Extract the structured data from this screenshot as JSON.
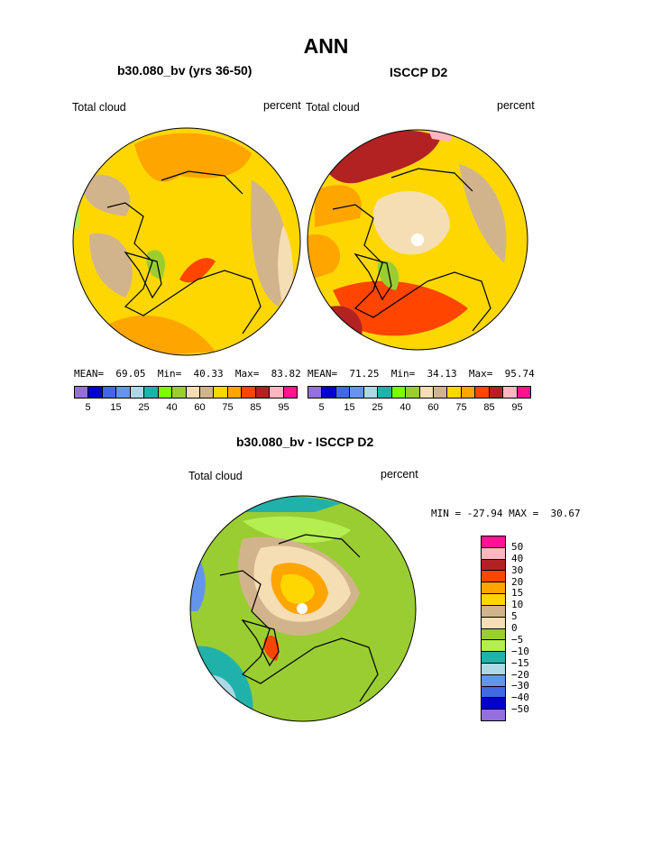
{
  "title": "ANN",
  "panels": [
    {
      "subtitle": "b30.080_bv (yrs 36-50)",
      "left_label": "Total cloud",
      "right_label": "percent",
      "stats": {
        "mean_label": "MEAN=",
        "mean": "69.05",
        "min_label": "Min=",
        "min": "40.33",
        "max_label": "Max=",
        "max": "83.82"
      }
    },
    {
      "subtitle": "ISCCP D2",
      "left_label": "Total cloud",
      "right_label": "percent",
      "stats": {
        "mean_label": "MEAN=",
        "mean": "71.25",
        "min_label": "Min=",
        "min": "34.13",
        "max_label": "Max=",
        "max": "95.74"
      }
    }
  ],
  "abs_colorbar": {
    "colors": [
      "#9370db",
      "#0000cd",
      "#4169e1",
      "#6495ed",
      "#add8e6",
      "#20b2aa",
      "#7cfc00",
      "#9acd32",
      "#f5deb3",
      "#d2b48c",
      "#ffd700",
      "#ffa500",
      "#ff4500",
      "#b22222",
      "#ffb6c1",
      "#ff1493"
    ],
    "tick_labels": [
      "5",
      "15",
      "25",
      "40",
      "60",
      "75",
      "85",
      "95"
    ]
  },
  "diff_panel": {
    "subtitle": "b30.080_bv - ISCCP D2",
    "left_label": "Total cloud",
    "right_label": "percent",
    "minmax": "MIN = -27.94 MAX =  30.67"
  },
  "diff_colorbar": {
    "colors": [
      "#ff1493",
      "#ffb6c1",
      "#b22222",
      "#ff4500",
      "#ffa500",
      "#ffd700",
      "#d2b48c",
      "#f5deb3",
      "#9acd32",
      "#b4ee50",
      "#20b2aa",
      "#add8e6",
      "#6495ed",
      "#4169e1",
      "#0000cd",
      "#9370db"
    ],
    "tick_labels": [
      "50",
      "40",
      "30",
      "20",
      "15",
      "10",
      "5",
      "0",
      "−5",
      "−10",
      "−15",
      "−20",
      "−30",
      "−40",
      "−50"
    ]
  },
  "map_colors": {
    "panel1": {
      "base": "#ffd700",
      "blobs": [
        "#ffa500",
        "#d2b48c",
        "#f5deb3",
        "#ff4500",
        "#9acd32",
        "#b4ee50"
      ]
    },
    "panel2": {
      "base": "#ffd700",
      "blobs": [
        "#b22222",
        "#ff4500",
        "#ffa500",
        "#d2b48c",
        "#f5deb3",
        "#ffb6c1",
        "#9acd32"
      ]
    },
    "diff": {
      "base": "#9acd32",
      "blobs": [
        "#b4ee50",
        "#20b2aa",
        "#add8e6",
        "#6495ed",
        "#d2b48c",
        "#f5deb3",
        "#ffa500",
        "#ffd700",
        "#ff4500"
      ]
    }
  }
}
